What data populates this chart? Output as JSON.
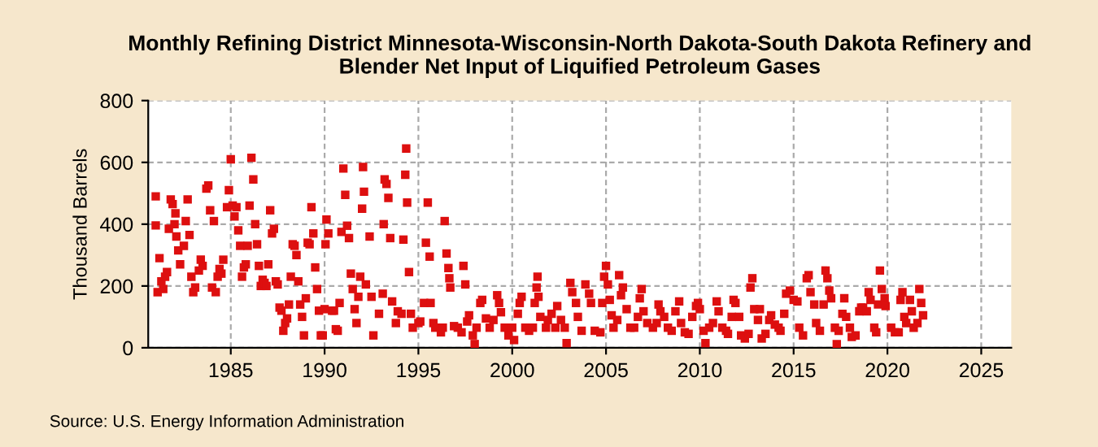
{
  "chart_data": {
    "type": "scatter",
    "title": "Monthly Refining District Minnesota-Wisconsin-North Dakota-South Dakota Refinery and\nBlender Net Input of Liquified Petroleum Gases",
    "ylabel": "Thousand Barrels",
    "annotations": [
      "Source: U.S. Energy Information Administration"
    ],
    "xlim": [
      1980.6,
      2026.6
    ],
    "xticks": [
      1985,
      1990,
      1995,
      2000,
      2005,
      2010,
      2015,
      2020,
      2025
    ],
    "ylim": [
      0,
      800
    ],
    "yticks": [
      0,
      200,
      400,
      600,
      800
    ],
    "grid": true,
    "marker": "square",
    "series": [
      {
        "color": "#dd0f0f",
        "x": [
          1981.0,
          1981.0,
          1981.1,
          1981.2,
          1981.3,
          1981.4,
          1981.5,
          1981.6,
          1981.7,
          1981.8,
          1981.9,
          1982.0,
          1982.05,
          1982.1,
          1982.2,
          1982.3,
          1982.5,
          1982.6,
          1982.7,
          1982.8,
          1982.9,
          1983.0,
          1983.1,
          1983.3,
          1983.4,
          1983.5,
          1983.7,
          1983.8,
          1983.9,
          1984.0,
          1984.1,
          1984.2,
          1984.3,
          1984.4,
          1984.5,
          1984.6,
          1984.8,
          1984.9,
          1985.0,
          1985.1,
          1985.2,
          1985.3,
          1985.4,
          1985.5,
          1985.6,
          1985.7,
          1985.8,
          1985.9,
          1986.0,
          1986.1,
          1986.2,
          1986.3,
          1986.4,
          1986.5,
          1986.6,
          1986.7,
          1986.8,
          1986.9,
          1987.0,
          1987.1,
          1987.2,
          1987.3,
          1987.4,
          1987.5,
          1987.6,
          1987.7,
          1987.8,
          1987.9,
          1988.0,
          1988.1,
          1988.2,
          1988.3,
          1988.4,
          1988.5,
          1988.6,
          1988.7,
          1988.8,
          1988.9,
          1989.0,
          1989.1,
          1989.2,
          1989.3,
          1989.4,
          1989.5,
          1989.6,
          1989.7,
          1989.8,
          1989.9,
          1990.0,
          1990.05,
          1990.1,
          1990.2,
          1990.4,
          1990.5,
          1990.6,
          1990.7,
          1990.8,
          1990.9,
          1991.0,
          1991.1,
          1991.2,
          1991.3,
          1991.4,
          1991.5,
          1991.6,
          1991.7,
          1991.8,
          1991.9,
          1992.0,
          1992.05,
          1992.1,
          1992.2,
          1992.4,
          1992.5,
          1992.6,
          1992.9,
          1993.1,
          1993.15,
          1993.2,
          1993.3,
          1993.4,
          1993.5,
          1993.6,
          1993.8,
          1993.9,
          1994.1,
          1994.2,
          1994.3,
          1994.35,
          1994.4,
          1994.5,
          1994.6,
          1994.7,
          1995.0,
          1995.1,
          1995.3,
          1995.4,
          1995.5,
          1995.6,
          1995.65,
          1995.8,
          1995.9,
          1996.2,
          1996.3,
          1996.4,
          1996.5,
          1996.6,
          1996.65,
          1996.7,
          1996.9,
          1997.1,
          1997.3,
          1997.4,
          1997.5,
          1997.6,
          1997.7,
          1997.9,
          1998.0,
          1998.1,
          1998.3,
          1998.4,
          1998.6,
          1998.8,
          1999.0,
          1999.2,
          1999.3,
          1999.4,
          1999.6,
          1999.8,
          2000.0,
          2000.1,
          2000.3,
          2000.4,
          2000.5,
          2000.7,
          2000.9,
          2001.1,
          2001.2,
          2001.3,
          2001.35,
          2001.4,
          2001.5,
          2001.8,
          2001.9,
          2002.1,
          2002.3,
          2002.4,
          2002.6,
          2002.8,
          2002.9,
          2003.1,
          2003.2,
          2003.4,
          2003.5,
          2003.7,
          2003.9,
          2004.1,
          2004.2,
          2004.4,
          2004.7,
          2004.8,
          2004.9,
          2005.0,
          2005.1,
          2005.2,
          2005.3,
          2005.4,
          2005.6,
          2005.7,
          2005.8,
          2005.9,
          2006.1,
          2006.3,
          2006.5,
          2006.7,
          2006.8,
          2006.9,
          2007.0,
          2007.2,
          2007.5,
          2007.7,
          2007.8,
          2007.9,
          2008.1,
          2008.3,
          2008.5,
          2008.7,
          2008.9,
          2009.0,
          2009.2,
          2009.4,
          2009.6,
          2009.8,
          2009.9,
          2010.0,
          2010.2,
          2010.3,
          2010.5,
          2010.7,
          2010.9,
          2011.0,
          2011.2,
          2011.4,
          2011.5,
          2011.7,
          2011.8,
          2011.9,
          2012.1,
          2012.2,
          2012.4,
          2012.6,
          2012.7,
          2012.8,
          2012.9,
          2013.1,
          2013.2,
          2013.3,
          2013.5,
          2013.7,
          2013.8,
          2014.0,
          2014.2,
          2014.3,
          2014.5,
          2014.6,
          2014.8,
          2015.0,
          2015.2,
          2015.3,
          2015.5,
          2015.7,
          2015.8,
          2015.9,
          2016.1,
          2016.2,
          2016.4,
          2016.6,
          2016.7,
          2016.8,
          2016.9,
          2017.0,
          2017.2,
          2017.3,
          2017.4,
          2017.6,
          2017.7,
          2017.8,
          2018.0,
          2018.1,
          2018.3,
          2018.5,
          2018.6,
          2018.7,
          2018.9,
          2019.0,
          2019.1,
          2019.3,
          2019.4,
          2019.5,
          2019.6,
          2019.7,
          2019.85,
          2019.9,
          2020.2,
          2020.4,
          2020.6,
          2020.7,
          2020.8,
          2020.9,
          2021.0,
          2021.2,
          2021.3,
          2021.4,
          2021.6,
          2021.7,
          2021.8,
          2021.9
        ],
        "values": [
          490,
          396,
          180,
          290,
          215,
          190,
          230,
          245,
          385,
          480,
          465,
          400,
          435,
          360,
          315,
          270,
          330,
          410,
          480,
          365,
          230,
          180,
          195,
          250,
          285,
          265,
          515,
          525,
          445,
          195,
          410,
          180,
          230,
          255,
          240,
          285,
          455,
          510,
          610,
          460,
          425,
          455,
          380,
          330,
          230,
          260,
          270,
          330,
          460,
          615,
          545,
          400,
          335,
          265,
          200,
          220,
          210,
          200,
          270,
          445,
          370,
          385,
          215,
          205,
          130,
          120,
          55,
          80,
          95,
          140,
          230,
          335,
          330,
          300,
          215,
          140,
          100,
          40,
          160,
          340,
          335,
          455,
          370,
          260,
          190,
          120,
          40,
          40,
          125,
          335,
          415,
          370,
          120,
          120,
          60,
          55,
          145,
          375,
          580,
          495,
          395,
          355,
          240,
          190,
          125,
          80,
          165,
          230,
          450,
          585,
          505,
          205,
          360,
          165,
          40,
          110,
          175,
          400,
          545,
          530,
          485,
          355,
          150,
          80,
          118,
          110,
          350,
          560,
          645,
          470,
          245,
          110,
          65,
          80,
          85,
          145,
          340,
          470,
          295,
          145,
          80,
          65,
          50,
          65,
          410,
          305,
          258,
          225,
          195,
          70,
          65,
          50,
          265,
          205,
          85,
          105,
          40,
          12,
          65,
          145,
          155,
          95,
          65,
          90,
          170,
          145,
          115,
          65,
          40,
          65,
          25,
          110,
          145,
          165,
          65,
          55,
          65,
          145,
          195,
          230,
          165,
          100,
          65,
          90,
          110,
          65,
          135,
          90,
          65,
          15,
          210,
          180,
          145,
          100,
          55,
          205,
          175,
          145,
          55,
          50,
          145,
          230,
          265,
          205,
          155,
          105,
          65,
          90,
          235,
          170,
          195,
          125,
          65,
          65,
          100,
          160,
          190,
          118,
          80,
          65,
          80,
          140,
          118,
          100,
          65,
          55,
          118,
          150,
          80,
          50,
          45,
          100,
          135,
          145,
          125,
          55,
          15,
          65,
          80,
          150,
          118,
          65,
          55,
          45,
          100,
          155,
          145,
          100,
          40,
          30,
          45,
          195,
          225,
          125,
          90,
          125,
          30,
          45,
          90,
          105,
          75,
          65,
          55,
          110,
          175,
          185,
          155,
          150,
          65,
          40,
          225,
          235,
          180,
          140,
          80,
          55,
          140,
          250,
          225,
          185,
          160,
          65,
          12,
          55,
          110,
          160,
          100,
          65,
          35,
          40,
          118,
          130,
          130,
          118,
          180,
          155,
          65,
          50,
          140,
          250,
          190,
          160,
          135,
          65,
          50,
          50,
          155,
          180,
          100,
          80,
          155,
          118,
          65,
          80,
          190,
          145,
          105
        ]
      }
    ]
  }
}
